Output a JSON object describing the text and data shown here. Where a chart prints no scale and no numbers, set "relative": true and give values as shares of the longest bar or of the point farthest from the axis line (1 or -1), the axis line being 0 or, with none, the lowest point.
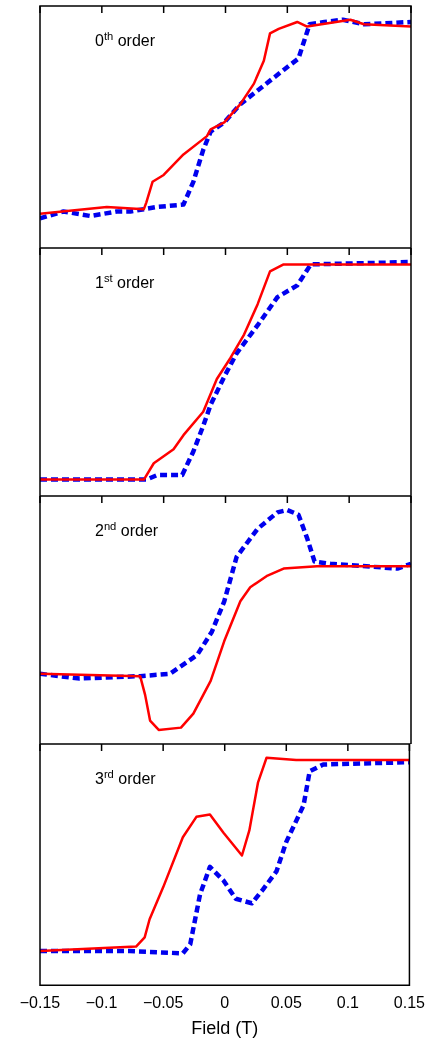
{
  "chart_data": [
    {
      "type": "line",
      "relative": true,
      "xlim": [
        -0.15,
        0.15
      ],
      "xticks": [
        -0.15,
        -0.1,
        -0.05,
        0,
        0.05,
        0.1,
        0.15
      ],
      "tick_labels": false,
      "annotations": [
        "0$^{th}$ order"
      ],
      "series": [
        {
          "color": "#ff0000",
          "line_style": "solid",
          "x": [
            -0.15,
            -0.096,
            -0.066,
            -0.064,
            -0.059,
            -0.05,
            -0.034,
            -0.015,
            -0.012,
            -0.001,
            0.012,
            0.023,
            0.031,
            0.036,
            0.043,
            0.058,
            0.066,
            0.101,
            0.112,
            0.15
          ],
          "values": [
            0.15,
            0.18,
            0.17,
            0.2,
            0.29,
            0.32,
            0.41,
            0.49,
            0.52,
            0.55,
            0.63,
            0.72,
            0.82,
            0.94,
            0.96,
            0.99,
            0.97,
            1.0,
            0.98,
            0.97
          ]
        },
        {
          "color": "#0000ee",
          "line_style": "dashed",
          "x": [
            -0.15,
            -0.131,
            -0.109,
            -0.088,
            -0.077,
            -0.055,
            -0.034,
            -0.026,
            -0.018,
            -0.012,
            -0.001,
            0.012,
            0.026,
            0.047,
            0.059,
            0.068,
            0.08,
            0.095,
            0.112,
            0.15
          ],
          "values": [
            0.13,
            0.16,
            0.14,
            0.16,
            0.16,
            0.18,
            0.19,
            0.29,
            0.43,
            0.51,
            0.55,
            0.63,
            0.69,
            0.78,
            0.83,
            0.98,
            0.99,
            1.0,
            0.98,
            0.99
          ]
        }
      ]
    },
    {
      "type": "line",
      "relative": true,
      "xlim": [
        -0.15,
        0.15
      ],
      "xticks": [
        -0.15,
        -0.1,
        -0.05,
        0,
        0.05,
        0.1,
        0.15
      ],
      "tick_labels": false,
      "annotations": [
        "1$^{st}$ order"
      ],
      "series": [
        {
          "color": "#ff0000",
          "line_style": "solid",
          "x": [
            -0.15,
            -0.066,
            -0.058,
            -0.042,
            -0.034,
            -0.018,
            -0.007,
            0.004,
            0.015,
            0.026,
            0.036,
            0.047,
            0.15
          ],
          "values": [
            0.07,
            0.07,
            0.14,
            0.2,
            0.26,
            0.36,
            0.5,
            0.59,
            0.69,
            0.82,
            0.96,
            0.99,
            0.99
          ]
        },
        {
          "color": "#0000ee",
          "line_style": "dashed",
          "x": [
            -0.15,
            -0.064,
            -0.055,
            -0.035,
            -0.026,
            -0.018,
            -0.012,
            -0.001,
            0.009,
            0.026,
            0.042,
            0.058,
            0.069,
            0.15
          ],
          "values": [
            0.07,
            0.07,
            0.09,
            0.09,
            0.19,
            0.3,
            0.39,
            0.51,
            0.61,
            0.73,
            0.85,
            0.9,
            0.99,
            1.0
          ]
        }
      ]
    },
    {
      "type": "line",
      "relative": true,
      "xlim": [
        -0.15,
        0.15
      ],
      "xticks": [
        -0.15,
        -0.1,
        -0.05,
        0,
        0.05,
        0.1,
        0.15
      ],
      "tick_labels": false,
      "annotations": [
        "2$^{nd}$ order"
      ],
      "series": [
        {
          "color": "#ff0000",
          "line_style": "solid",
          "x": [
            -0.15,
            -0.069,
            -0.065,
            -0.061,
            -0.054,
            -0.036,
            -0.026,
            -0.012,
            -0.001,
            0.012,
            0.02,
            0.034,
            0.047,
            0.074,
            0.15
          ],
          "values": [
            0.3,
            0.29,
            0.21,
            0.1,
            0.06,
            0.07,
            0.13,
            0.27,
            0.44,
            0.61,
            0.67,
            0.72,
            0.75,
            0.76,
            0.76
          ]
        },
        {
          "color": "#0000ee",
          "line_style": "dashed",
          "x": [
            -0.15,
            -0.118,
            -0.069,
            -0.045,
            -0.023,
            -0.011,
            -0.001,
            0.009,
            0.026,
            0.042,
            0.05,
            0.059,
            0.066,
            0.072,
            0.085,
            0.139,
            0.15
          ],
          "values": [
            0.3,
            0.28,
            0.29,
            0.3,
            0.38,
            0.48,
            0.61,
            0.8,
            0.92,
            0.99,
            1.0,
            0.98,
            0.88,
            0.78,
            0.77,
            0.75,
            0.77
          ]
        }
      ]
    },
    {
      "type": "line",
      "relative": true,
      "xlim": [
        -0.15,
        0.15
      ],
      "xticks": [
        -0.15,
        -0.1,
        -0.05,
        0,
        0.05,
        0.1,
        0.15
      ],
      "tick_labels": "x",
      "xlabel": "Field (T)",
      "annotations": [
        "3$^{rd}$ order"
      ],
      "series": [
        {
          "color": "#ff0000",
          "line_style": "solid",
          "x": [
            -0.15,
            -0.072,
            -0.065,
            -0.061,
            -0.05,
            -0.034,
            -0.023,
            -0.012,
            -0.001,
            0.014,
            0.02,
            0.027,
            0.034,
            0.058,
            0.15
          ],
          "values": [
            0.15,
            0.17,
            0.21,
            0.29,
            0.43,
            0.65,
            0.74,
            0.75,
            0.67,
            0.57,
            0.68,
            0.89,
            1.0,
            0.99,
            0.99
          ]
        },
        {
          "color": "#0000ee",
          "line_style": "dashed",
          "x": [
            -0.15,
            -0.077,
            -0.034,
            -0.028,
            -0.02,
            -0.012,
            -0.001,
            0.009,
            0.022,
            0.031,
            0.042,
            0.05,
            0.064,
            0.069,
            0.08,
            0.15
          ],
          "values": [
            0.15,
            0.15,
            0.14,
            0.18,
            0.4,
            0.52,
            0.46,
            0.38,
            0.36,
            0.42,
            0.5,
            0.63,
            0.79,
            0.94,
            0.97,
            0.98
          ]
        }
      ]
    }
  ]
}
